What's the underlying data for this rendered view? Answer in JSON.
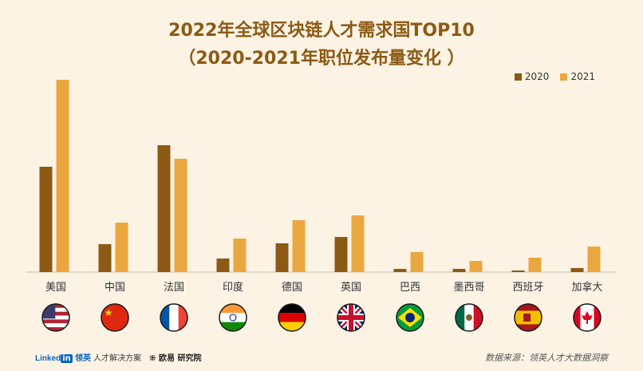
{
  "chart_data": {
    "type": "bar",
    "title": "2022年全球区块链人才需求国TOP10",
    "subtitle": "（2020-2021年职位发布量变化 ）",
    "categories": [
      "美国",
      "中国",
      "法国",
      "印度",
      "德国",
      "英国",
      "巴西",
      "墨西哥",
      "西班牙",
      "加拿大"
    ],
    "series": [
      {
        "name": "2020",
        "color": "#8C5A14",
        "values": [
          132,
          35,
          159,
          17,
          36,
          44,
          4,
          4,
          2,
          5
        ]
      },
      {
        "name": "2021",
        "color": "#EBA73F",
        "values": [
          241,
          62,
          142,
          42,
          65,
          71,
          25,
          14,
          18,
          32
        ]
      }
    ],
    "legend_position": "top-right",
    "grid": false,
    "flag_icons": [
      "us-flag-icon",
      "china-flag-icon",
      "france-flag-icon",
      "india-flag-icon",
      "germany-flag-icon",
      "uk-flag-icon",
      "brazil-flag-icon",
      "mexico-flag-icon",
      "spain-flag-icon",
      "canada-flag-icon"
    ]
  },
  "footer": {
    "linkedin_word": "Linked",
    "linkedin_in": "in",
    "linkedin_cn": "领英",
    "linkedin_sub": "人才解决方案",
    "partner": "欧易 研究院",
    "source": "数据来源：领英人才大数据洞察"
  }
}
